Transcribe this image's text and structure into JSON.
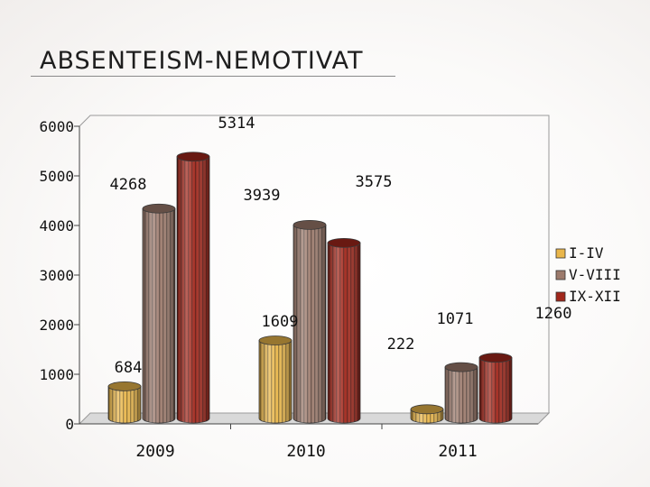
{
  "slide": {
    "title": "ABSENTEISM-NEMOTIVAT"
  },
  "chart_data": {
    "type": "bar",
    "title": "",
    "xlabel": "",
    "ylabel": "",
    "categories": [
      "2009",
      "2010",
      "2011"
    ],
    "ylim": [
      0,
      6000
    ],
    "yticks": [
      "0",
      "1000",
      "2000",
      "3000",
      "4000",
      "5000",
      "6000"
    ],
    "series": [
      {
        "name": "I-IV",
        "values": [
          684,
          1609,
          222
        ],
        "labels": [
          "684",
          "1609",
          "222"
        ],
        "color": "#e9b64a"
      },
      {
        "name": "V-VIII",
        "values": [
          4268,
          3939,
          1071
        ],
        "labels": [
          "4268",
          "3939",
          "1071"
        ],
        "color": "#9c7a6c"
      },
      {
        "name": "IX-XII",
        "values": [
          5314,
          3575,
          1260
        ],
        "labels": [
          "5314",
          "3575",
          "1260"
        ],
        "color": "#a1271b"
      }
    ],
    "legend": "right",
    "grid": false
  }
}
